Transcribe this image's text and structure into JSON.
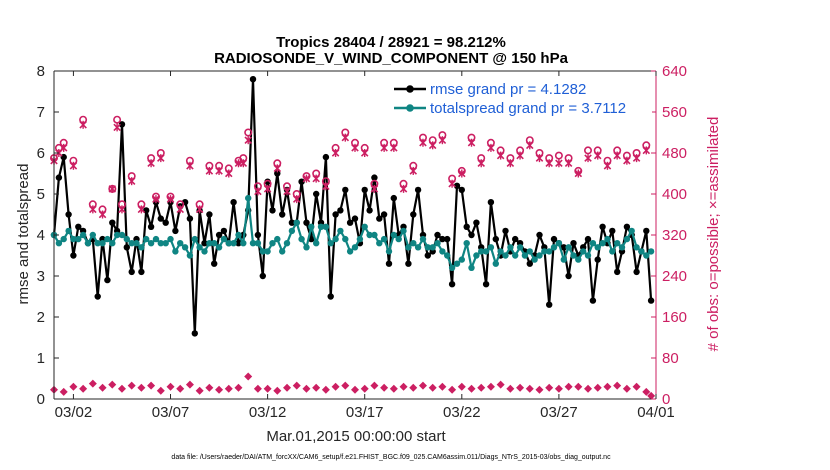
{
  "title_line1": "Tropics 28404 / 28921 = 98.212%",
  "title_line2": "RADIOSONDE_V_WIND_COMPONENT @ 150 hPa",
  "footer": "data file: /Users/raeder/DAI/ATM_forcXX/CAM6_setup/f.e21.FHIST_BGC.f09_025.CAM6assim.011/Diags_NTrS_2015-03/obs_diag_output.nc",
  "colors": {
    "rmse": "#000000",
    "spread": "#0f8583",
    "obs": "#cc1f62",
    "legend_text": "#1f5fd6"
  },
  "chart_data": {
    "type": "line",
    "xlabel": "Mar.01,2015 00:00:00 start",
    "ylabel": "rmse and totalspread",
    "ylabel_right": "# of obs: o=possible; ×=assimilated",
    "xlim": [
      1,
      32
    ],
    "ylim": [
      0,
      8
    ],
    "ylim_right": [
      0,
      640
    ],
    "x_ticks": [
      2,
      7,
      12,
      17,
      22,
      27,
      32
    ],
    "x_tick_labels": [
      "03/02",
      "03/07",
      "03/12",
      "03/17",
      "03/22",
      "03/27",
      "04/01"
    ],
    "y_ticks": [
      0,
      1,
      2,
      3,
      4,
      5,
      6,
      7,
      8
    ],
    "y_ticks_right": [
      0,
      80,
      160,
      240,
      320,
      400,
      480,
      560,
      640
    ],
    "legend": [
      {
        "series": "rmse",
        "label": "rmse grand pr = 4.1282"
      },
      {
        "series": "totalspread",
        "label": "totalspread grand pr = 3.7112"
      }
    ],
    "series": [
      {
        "name": "rmse",
        "axis": "left",
        "x": [
          1.0,
          1.25,
          1.5,
          1.75,
          2.0,
          2.25,
          2.5,
          2.75,
          3.0,
          3.25,
          3.5,
          3.75,
          4.0,
          4.25,
          4.5,
          4.75,
          5.0,
          5.25,
          5.5,
          5.75,
          6.0,
          6.25,
          6.5,
          6.75,
          7.0,
          7.25,
          7.5,
          7.75,
          8.0,
          8.25,
          8.5,
          8.75,
          9.0,
          9.25,
          9.5,
          9.75,
          10.0,
          10.25,
          10.5,
          10.75,
          11.0,
          11.25,
          11.5,
          11.75,
          12.0,
          12.25,
          12.5,
          12.75,
          13.0,
          13.25,
          13.5,
          13.75,
          14.0,
          14.25,
          14.5,
          14.75,
          15.0,
          15.25,
          15.5,
          15.75,
          16.0,
          16.25,
          16.5,
          16.75,
          17.0,
          17.25,
          17.5,
          17.75,
          18.0,
          18.25,
          18.5,
          18.75,
          19.0,
          19.25,
          19.5,
          19.75,
          20.0,
          20.25,
          20.5,
          20.75,
          21.0,
          21.25,
          21.5,
          21.75,
          22.0,
          22.25,
          22.5,
          22.75,
          23.0,
          23.25,
          23.5,
          23.75,
          24.0,
          24.25,
          24.5,
          24.75,
          25.0,
          25.25,
          25.5,
          25.75,
          26.0,
          26.25,
          26.5,
          26.75,
          27.0,
          27.25,
          27.5,
          27.75,
          28.0,
          28.25,
          28.5,
          28.75,
          29.0,
          29.25,
          29.5,
          29.75,
          30.0,
          30.25,
          30.5,
          30.75,
          31.0,
          31.25,
          31.5,
          31.75
        ],
        "values": [
          4.0,
          5.4,
          5.9,
          4.5,
          3.5,
          4.2,
          4.1,
          3.8,
          3.9,
          2.5,
          3.9,
          2.9,
          4.3,
          4.1,
          6.7,
          3.7,
          3.1,
          3.9,
          3.1,
          4.6,
          4.2,
          4.8,
          4.4,
          4.3,
          4.8,
          4.1,
          4.7,
          4.8,
          4.4,
          1.6,
          4.6,
          3.8,
          4.5,
          3.3,
          4.0,
          4.1,
          3.8,
          4.8,
          3.8,
          4.0,
          4.6,
          7.8,
          4.0,
          3.0,
          5.3,
          4.6,
          5.5,
          4.5,
          5.1,
          4.3,
          4.3,
          5.3,
          4.3,
          3.9,
          5.0,
          4.3,
          5.9,
          2.5,
          4.5,
          4.6,
          5.1,
          4.3,
          4.4,
          3.8,
          5.1,
          4.6,
          5.4,
          4.4,
          4.5,
          3.3,
          4.9,
          4.0,
          4.2,
          3.3,
          4.5,
          5.1,
          4.0,
          3.5,
          3.6,
          4.0,
          3.9,
          3.9,
          2.8,
          5.2,
          5.1,
          4.2,
          4.0,
          4.3,
          3.7,
          2.8,
          4.8,
          3.9,
          3.5,
          4.1,
          3.6,
          3.9,
          3.8,
          3.6,
          3.3,
          3.5,
          4.0,
          3.7,
          2.3,
          3.9,
          3.8,
          3.7,
          3.0,
          3.8,
          3.5,
          3.7,
          3.9,
          2.4,
          3.4,
          4.2,
          3.8,
          4.1,
          3.1,
          3.6,
          4.2,
          4.0,
          3.1,
          3.6,
          4.1,
          2.4
        ]
      },
      {
        "name": "totalspread",
        "axis": "left",
        "x": [
          1.0,
          1.25,
          1.5,
          1.75,
          2.0,
          2.25,
          2.5,
          2.75,
          3.0,
          3.25,
          3.5,
          3.75,
          4.0,
          4.25,
          4.5,
          4.75,
          5.0,
          5.25,
          5.5,
          5.75,
          6.0,
          6.25,
          6.5,
          6.75,
          7.0,
          7.25,
          7.5,
          7.75,
          8.0,
          8.25,
          8.5,
          8.75,
          9.0,
          9.25,
          9.5,
          9.75,
          10.0,
          10.25,
          10.5,
          10.75,
          11.0,
          11.25,
          11.5,
          11.75,
          12.0,
          12.25,
          12.5,
          12.75,
          13.0,
          13.25,
          13.5,
          13.75,
          14.0,
          14.25,
          14.5,
          14.75,
          15.0,
          15.25,
          15.5,
          15.75,
          16.0,
          16.25,
          16.5,
          16.75,
          17.0,
          17.25,
          17.5,
          17.75,
          18.0,
          18.25,
          18.5,
          18.75,
          19.0,
          19.25,
          19.5,
          19.75,
          20.0,
          20.25,
          20.5,
          20.75,
          21.0,
          21.25,
          21.5,
          21.75,
          22.0,
          22.25,
          22.5,
          22.75,
          23.0,
          23.25,
          23.5,
          23.75,
          24.0,
          24.25,
          24.5,
          24.75,
          25.0,
          25.25,
          25.5,
          25.75,
          26.0,
          26.25,
          26.5,
          26.75,
          27.0,
          27.25,
          27.5,
          27.75,
          28.0,
          28.25,
          28.5,
          28.75,
          29.0,
          29.25,
          29.5,
          29.75,
          30.0,
          30.25,
          30.5,
          30.75,
          31.0,
          31.25,
          31.5,
          31.75
        ],
        "values": [
          4.0,
          3.8,
          3.9,
          4.1,
          3.9,
          3.9,
          4.0,
          3.8,
          4.0,
          3.8,
          3.8,
          3.9,
          3.8,
          4.0,
          4.0,
          3.9,
          3.8,
          3.8,
          3.7,
          3.9,
          3.8,
          3.9,
          3.8,
          3.8,
          3.9,
          3.6,
          3.8,
          3.7,
          3.5,
          3.9,
          3.7,
          3.6,
          3.8,
          3.8,
          3.7,
          3.9,
          3.8,
          3.8,
          4.0,
          3.8,
          4.9,
          3.8,
          3.8,
          3.6,
          3.6,
          3.8,
          3.9,
          3.6,
          3.8,
          4.1,
          4.3,
          3.9,
          3.7,
          4.2,
          3.8,
          4.2,
          4.2,
          3.8,
          3.9,
          4.1,
          3.9,
          3.6,
          3.7,
          3.9,
          4.2,
          4.0,
          4.0,
          3.8,
          3.9,
          3.6,
          4.0,
          3.9,
          4.1,
          3.7,
          3.8,
          3.7,
          3.9,
          3.7,
          3.7,
          3.8,
          3.6,
          3.5,
          3.2,
          3.3,
          3.4,
          3.8,
          3.2,
          3.5,
          3.6,
          3.6,
          3.7,
          3.3,
          3.6,
          3.5,
          3.7,
          3.5,
          3.7,
          3.5,
          3.6,
          3.4,
          3.5,
          3.6,
          3.6,
          3.7,
          3.8,
          3.4,
          3.7,
          3.5,
          3.4,
          3.6,
          3.5,
          3.8,
          3.7,
          3.8,
          3.9,
          3.6,
          3.8,
          3.7,
          3.9,
          4.1,
          3.7,
          3.6,
          3.5,
          3.6
        ]
      },
      {
        "name": "obs possible",
        "axis": "right",
        "marker": "circle",
        "x": [
          1.0,
          1.25,
          1.5,
          2.0,
          2.5,
          3.0,
          3.5,
          4.0,
          4.25,
          4.5,
          5.0,
          5.5,
          6.0,
          6.25,
          6.5,
          7.0,
          7.5,
          8.0,
          8.5,
          9.0,
          9.5,
          10.0,
          10.5,
          10.75,
          11.0,
          11.5,
          12.0,
          12.5,
          13.0,
          13.5,
          14.0,
          14.5,
          15.0,
          15.5,
          16.0,
          16.5,
          17.0,
          17.5,
          18.0,
          18.5,
          19.0,
          19.5,
          20.0,
          20.5,
          21.0,
          21.5,
          22.0,
          22.5,
          23.0,
          23.5,
          24.0,
          24.5,
          25.0,
          25.5,
          26.0,
          26.5,
          27.0,
          27.5,
          28.0,
          28.5,
          29.0,
          29.5,
          30.0,
          30.5,
          31.0,
          31.5
        ],
        "values": [
          470,
          490,
          500,
          465,
          545,
          380,
          370,
          410,
          545,
          380,
          435,
          380,
          470,
          395,
          480,
          395,
          380,
          465,
          380,
          455,
          455,
          450,
          465,
          470,
          520,
          415,
          420,
          460,
          415,
          400,
          435,
          440,
          425,
          490,
          520,
          500,
          490,
          420,
          500,
          500,
          420,
          455,
          510,
          505,
          515,
          430,
          445,
          510,
          470,
          500,
          485,
          470,
          485,
          505,
          480,
          470,
          475,
          470,
          445,
          485,
          485,
          465,
          485,
          475,
          480,
          495
        ]
      },
      {
        "name": "obs assimilated",
        "axis": "right",
        "marker": "x",
        "x": [
          1.0,
          1.25,
          1.5,
          2.0,
          2.5,
          3.0,
          3.5,
          4.0,
          4.25,
          4.5,
          5.0,
          5.5,
          6.0,
          6.25,
          6.5,
          7.0,
          7.5,
          8.0,
          8.5,
          9.0,
          9.5,
          10.0,
          10.5,
          10.75,
          11.0,
          11.5,
          12.0,
          12.5,
          13.0,
          13.5,
          14.0,
          14.5,
          15.0,
          15.5,
          16.0,
          16.5,
          17.0,
          17.5,
          18.0,
          18.5,
          19.0,
          19.5,
          20.0,
          20.5,
          21.0,
          21.5,
          22.0,
          22.5,
          23.0,
          23.5,
          24.0,
          24.5,
          25.0,
          25.5,
          26.0,
          26.5,
          27.0,
          27.5,
          28.0,
          28.5,
          29.0,
          29.5,
          30.0,
          30.5,
          31.0,
          31.5
        ],
        "values": [
          465,
          480,
          490,
          455,
          535,
          370,
          360,
          410,
          530,
          370,
          425,
          370,
          460,
          390,
          470,
          390,
          370,
          455,
          370,
          445,
          445,
          440,
          460,
          460,
          505,
          405,
          410,
          450,
          405,
          390,
          430,
          430,
          415,
          480,
          510,
          490,
          480,
          410,
          490,
          490,
          410,
          445,
          500,
          495,
          505,
          420,
          440,
          500,
          460,
          490,
          475,
          460,
          475,
          495,
          470,
          460,
          460,
          460,
          440,
          470,
          475,
          455,
          475,
          465,
          470,
          485
        ]
      },
      {
        "name": "obs rejected",
        "axis": "right",
        "marker": "diamond",
        "x": [
          1.0,
          1.5,
          2.0,
          2.5,
          3.0,
          3.5,
          4.0,
          4.5,
          5.0,
          5.5,
          6.0,
          6.5,
          7.0,
          7.5,
          8.0,
          8.5,
          9.0,
          9.5,
          10.0,
          10.5,
          11.0,
          11.5,
          12.0,
          12.5,
          13.0,
          13.5,
          14.0,
          14.5,
          15.0,
          15.5,
          16.0,
          16.5,
          17.0,
          17.5,
          18.0,
          18.5,
          19.0,
          19.5,
          20.0,
          20.5,
          21.0,
          21.5,
          22.0,
          22.5,
          23.0,
          23.5,
          24.0,
          24.5,
          25.0,
          25.5,
          26.0,
          26.5,
          27.0,
          27.5,
          28.0,
          28.5,
          29.0,
          29.5,
          30.0,
          30.5,
          31.0,
          31.5,
          31.75
        ],
        "values": [
          18,
          14,
          24,
          20,
          30,
          22,
          28,
          20,
          26,
          22,
          26,
          16,
          24,
          20,
          28,
          16,
          22,
          18,
          20,
          22,
          44,
          20,
          20,
          16,
          22,
          26,
          20,
          22,
          18,
          24,
          26,
          18,
          20,
          26,
          22,
          20,
          24,
          22,
          26,
          22,
          24,
          18,
          24,
          20,
          22,
          24,
          28,
          20,
          22,
          20,
          18,
          22,
          20,
          24,
          24,
          20,
          22,
          24,
          26,
          20,
          24,
          14,
          6
        ]
      }
    ]
  }
}
